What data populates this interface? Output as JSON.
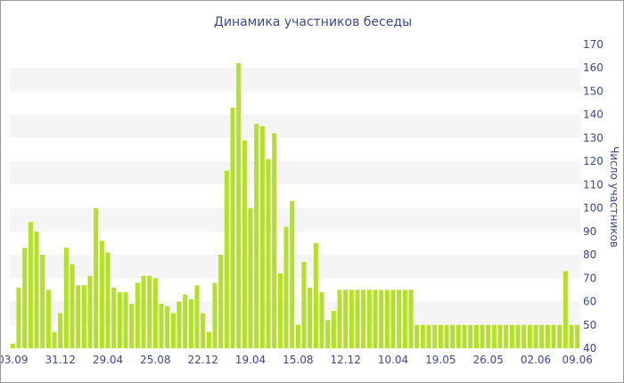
{
  "chart_data": {
    "type": "bar",
    "title": "Динамика участников беседы",
    "ylabel": "Число участников",
    "xlabel": "",
    "ylim": [
      40,
      170
    ],
    "yticks": [
      40,
      50,
      60,
      70,
      80,
      90,
      100,
      110,
      120,
      130,
      140,
      150,
      160,
      170
    ],
    "y_axis_side": "right",
    "grid": "alternating horizontal bands",
    "bar_color": "#b5e02a",
    "xtick_labels": [
      {
        "index": 0,
        "label": "03.09"
      },
      {
        "index": 8,
        "label": "31.12"
      },
      {
        "index": 16,
        "label": "29.04"
      },
      {
        "index": 24,
        "label": "25.08"
      },
      {
        "index": 32,
        "label": "22.12"
      },
      {
        "index": 40,
        "label": "19.04"
      },
      {
        "index": 48,
        "label": "15.08"
      },
      {
        "index": 56,
        "label": "12.12"
      },
      {
        "index": 64,
        "label": "10.04"
      },
      {
        "index": 72,
        "label": "19.05"
      },
      {
        "index": 80,
        "label": "26.05"
      },
      {
        "index": 88,
        "label": "02.06"
      },
      {
        "index": 95,
        "label": "09.06"
      }
    ],
    "values": [
      42,
      66,
      83,
      94,
      90,
      80,
      65,
      47,
      55,
      83,
      76,
      67,
      67,
      71,
      100,
      86,
      81,
      66,
      64,
      64,
      59,
      68,
      71,
      71,
      70,
      59,
      58,
      55,
      60,
      63,
      61,
      67,
      55,
      47,
      68,
      80,
      116,
      143,
      162,
      129,
      100,
      136,
      135,
      121,
      132,
      72,
      92,
      103,
      50,
      77,
      66,
      85,
      64,
      52,
      56,
      65,
      65,
      65,
      65,
      65,
      65,
      65,
      65,
      65,
      65,
      65,
      65,
      65,
      50,
      50,
      50,
      50,
      50,
      50,
      50,
      50,
      50,
      50,
      50,
      50,
      50,
      50,
      50,
      50,
      50,
      50,
      50,
      50,
      50,
      50,
      50,
      50,
      50,
      73,
      50,
      50
    ]
  }
}
